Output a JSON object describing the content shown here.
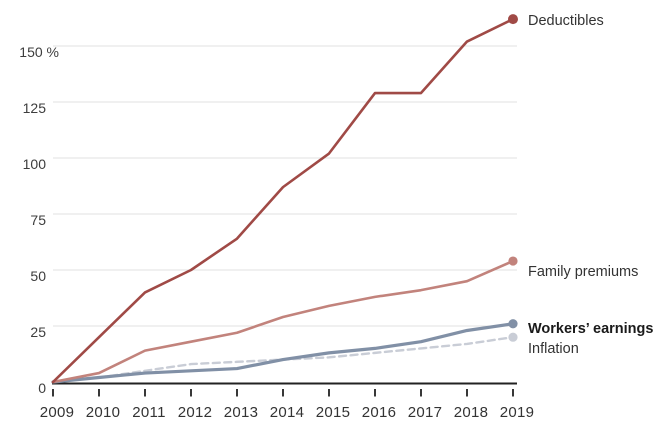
{
  "style": {
    "background": "#ffffff",
    "grid_color": "#e2e2e2",
    "axis_color": "#222222",
    "tick_color": "#222222",
    "text_color": "#333333",
    "bold_label_color": "#1a1a1a",
    "y_label_color": "#3d3d3d"
  },
  "chart_data": {
    "type": "line",
    "title": "",
    "xlabel": "",
    "ylabel": "",
    "y_unit": "%",
    "x": [
      2009,
      2010,
      2011,
      2012,
      2013,
      2014,
      2015,
      2016,
      2017,
      2018,
      2019
    ],
    "x_tick_labels": [
      "2009",
      "2010",
      "2011",
      "2012",
      "2013",
      "2014",
      "2015",
      "2016",
      "2017",
      "2018",
      "2019"
    ],
    "y_axis": {
      "tick_values": [
        0,
        25,
        50,
        75,
        100,
        125,
        150
      ],
      "tick_labels": [
        "0",
        "25",
        "50",
        "75",
        "100",
        "125",
        "150 %"
      ],
      "range": [
        0,
        165
      ],
      "gridlines": true
    },
    "legend_position": "right-of-line-ends",
    "series": [
      {
        "name": "Deductibles",
        "values": [
          0,
          20,
          40,
          50,
          64,
          87,
          102,
          129,
          129,
          152,
          162
        ],
        "color": "#a04a46",
        "line_style": "solid",
        "label_bold": false,
        "end_dot": true
      },
      {
        "name": "Family premiums",
        "values": [
          0,
          4,
          14,
          18,
          22,
          29,
          34,
          38,
          41,
          45,
          54
        ],
        "color": "#c2837c",
        "line_style": "solid",
        "label_bold": false,
        "end_dot": true
      },
      {
        "name": "Workers’ earnings",
        "values": [
          0,
          2,
          4,
          5,
          6,
          10,
          13,
          15,
          18,
          23,
          26
        ],
        "color": "#8190a6",
        "line_style": "solid",
        "label_bold": true,
        "end_dot": true
      },
      {
        "name": "Inflation",
        "values": [
          0,
          2,
          5,
          8,
          9,
          10,
          11,
          13,
          15,
          17,
          20
        ],
        "color": "#c9cdd6",
        "line_style": "dashed",
        "label_bold": false,
        "end_dot": true
      }
    ]
  }
}
